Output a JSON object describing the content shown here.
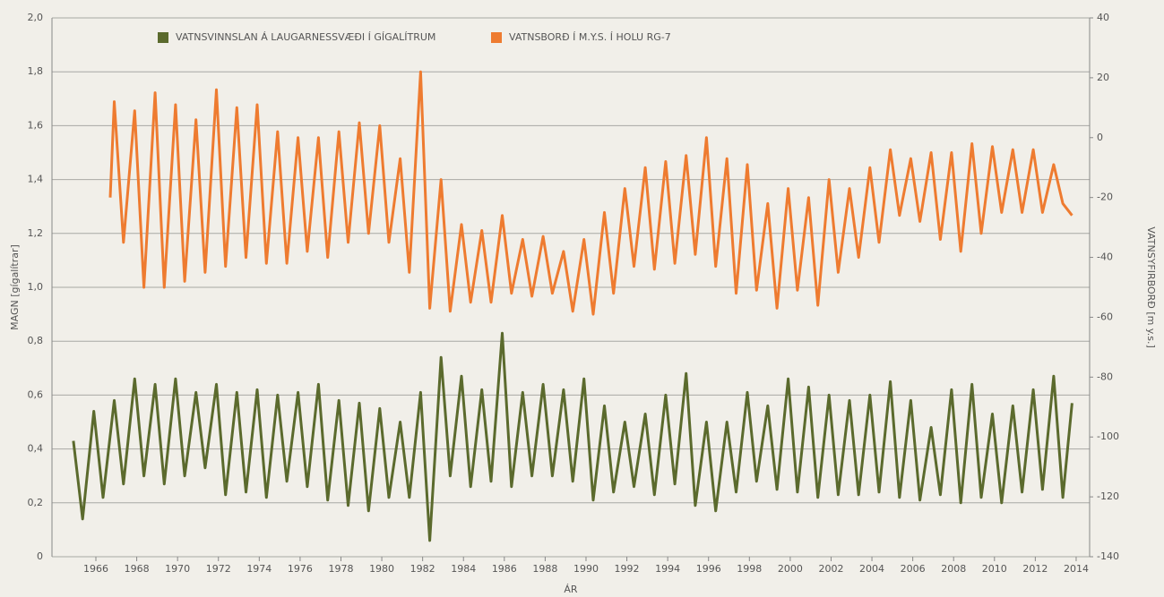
{
  "chart_data": {
    "type": "line",
    "xlabel": "ÁR",
    "ylabel": "MAGN [gígalítrar]",
    "y2label": "VATNSYFIRBORÐ [m y.s.]",
    "xlim": [
      1963.85,
      2014.66
    ],
    "xticks": [
      1966,
      1968,
      1970,
      1972,
      1974,
      1976,
      1978,
      1980,
      1982,
      1984,
      1986,
      1988,
      1990,
      1992,
      1994,
      1996,
      1998,
      2000,
      2002,
      2004,
      2006,
      2008,
      2010,
      2012,
      2014
    ],
    "ylim": [
      0,
      2
    ],
    "yticks": [
      0,
      {
        "value": 0.2,
        "label": "0,2"
      },
      {
        "value": 0.4,
        "label": "0,4"
      },
      {
        "value": 0.6,
        "label": "0,6"
      },
      {
        "value": 0.8,
        "label": "0,8"
      },
      {
        "value": 1,
        "label": "1,0"
      },
      {
        "value": 1.2,
        "label": "1,2"
      },
      {
        "value": 1.4,
        "label": "1,4"
      },
      {
        "value": 1.6,
        "label": "1,6"
      },
      {
        "value": 1.8,
        "label": "1,8"
      },
      {
        "value": 2,
        "label": "2,0"
      }
    ],
    "y2lim": [
      -140,
      40
    ],
    "y2ticks": [
      -140,
      -120,
      -100,
      -80,
      -60,
      -40,
      -20,
      0,
      20,
      40
    ],
    "grid": true,
    "series": [
      {
        "name": "VATNSVINNSLAN Á LAUGARNESSVÆÐI Í GÍGALÍTRUM",
        "color": "#5b6a2d",
        "x": [
          1964.9,
          1965.35,
          1965.9,
          1966.35,
          1966.9,
          1967.35,
          1967.9,
          1968.35,
          1968.9,
          1969.35,
          1969.9,
          1970.35,
          1970.9,
          1971.35,
          1971.9,
          1972.35,
          1972.9,
          1973.35,
          1973.9,
          1974.35,
          1974.9,
          1975.35,
          1975.9,
          1976.35,
          1976.9,
          1977.35,
          1977.9,
          1978.35,
          1978.9,
          1979.35,
          1979.9,
          1980.35,
          1980.9,
          1981.35,
          1981.9,
          1982.35,
          1982.9,
          1983.35,
          1983.9,
          1984.35,
          1984.9,
          1985.35,
          1985.9,
          1986.35,
          1986.9,
          1987.35,
          1987.9,
          1988.35,
          1988.9,
          1989.35,
          1989.9,
          1990.35,
          1990.9,
          1991.35,
          1991.9,
          1992.35,
          1992.9,
          1993.35,
          1993.9,
          1994.35,
          1994.9,
          1995.35,
          1995.9,
          1996.35,
          1996.9,
          1997.35,
          1997.9,
          1998.35,
          1998.9,
          1999.35,
          1999.9,
          2000.35,
          2000.9,
          2001.35,
          2001.9,
          2002.35,
          2002.9,
          2003.35,
          2003.9,
          2004.35,
          2004.9,
          2005.35,
          2005.9,
          2006.35,
          2006.9,
          2007.35,
          2007.9,
          2008.35,
          2008.9,
          2009.35,
          2009.9,
          2010.35,
          2010.9,
          2011.35,
          2011.9,
          2012.35,
          2012.9,
          2013.35,
          2013.8
        ],
        "values": [
          0.43,
          0.14,
          0.54,
          0.22,
          0.58,
          0.27,
          0.66,
          0.3,
          0.64,
          0.27,
          0.66,
          0.3,
          0.61,
          0.33,
          0.64,
          0.23,
          0.61,
          0.24,
          0.62,
          0.22,
          0.6,
          0.28,
          0.61,
          0.26,
          0.64,
          0.21,
          0.58,
          0.19,
          0.57,
          0.17,
          0.55,
          0.22,
          0.5,
          0.22,
          0.61,
          0.06,
          0.74,
          0.3,
          0.67,
          0.26,
          0.62,
          0.28,
          0.83,
          0.26,
          0.61,
          0.3,
          0.64,
          0.3,
          0.62,
          0.28,
          0.66,
          0.21,
          0.56,
          0.24,
          0.5,
          0.26,
          0.53,
          0.23,
          0.6,
          0.27,
          0.68,
          0.19,
          0.5,
          0.17,
          0.5,
          0.24,
          0.61,
          0.28,
          0.56,
          0.25,
          0.66,
          0.24,
          0.63,
          0.22,
          0.6,
          0.23,
          0.58,
          0.23,
          0.6,
          0.24,
          0.65,
          0.22,
          0.58,
          0.21,
          0.48,
          0.23,
          0.62,
          0.2,
          0.64,
          0.22,
          0.53,
          0.2,
          0.56,
          0.24,
          0.62,
          0.25,
          0.67,
          0.22,
          0.57
        ]
      },
      {
        "name": "VATNSBORÐ Í M.Y.S. Í HOLU RG-7",
        "color": "#ee7b30",
        "axis": "y2",
        "x": [
          1966.7,
          1966.9,
          1967.35,
          1967.9,
          1968.35,
          1968.9,
          1969.35,
          1969.9,
          1970.35,
          1970.9,
          1971.35,
          1971.9,
          1972.35,
          1972.9,
          1973.35,
          1973.9,
          1974.35,
          1974.9,
          1975.35,
          1975.9,
          1976.35,
          1976.9,
          1977.35,
          1977.9,
          1978.35,
          1978.9,
          1979.35,
          1979.9,
          1980.35,
          1980.9,
          1981.35,
          1981.9,
          1982.35,
          1982.9,
          1983.35,
          1983.9,
          1984.35,
          1984.9,
          1985.35,
          1985.9,
          1986.35,
          1986.9,
          1987.35,
          1987.9,
          1988.35,
          1988.9,
          1989.35,
          1989.9,
          1990.35,
          1990.9,
          1991.35,
          1991.9,
          1992.35,
          1992.9,
          1993.35,
          1993.9,
          1994.35,
          1994.9,
          1995.35,
          1995.9,
          1996.35,
          1996.9,
          1997.35,
          1997.9,
          1998.35,
          1998.9,
          1999.35,
          1999.9,
          2000.35,
          2000.9,
          2001.35,
          2001.9,
          2002.35,
          2002.9,
          2003.35,
          2003.9,
          2004.35,
          2004.9,
          2005.35,
          2005.9,
          2006.35,
          2006.9,
          2007.35,
          2007.9,
          2008.35,
          2008.9,
          2009.35,
          2009.9,
          2010.35,
          2010.9,
          2011.35,
          2011.9,
          2012.35,
          2012.9,
          2013.35,
          2013.8
        ],
        "values": [
          -20,
          12,
          -35,
          9,
          -50,
          15,
          -50,
          11,
          -48,
          6,
          -45,
          16,
          -43,
          10,
          -40,
          11,
          -42,
          2,
          -42,
          0,
          -38,
          0,
          -40,
          2,
          -35,
          5,
          -32,
          4,
          -35,
          -7,
          -45,
          22,
          -57,
          -14,
          -58,
          -29,
          -55,
          -31,
          -55,
          -26,
          -52,
          -34,
          -53,
          -33,
          -52,
          -38,
          -58,
          -34,
          -59,
          -25,
          -52,
          -17,
          -43,
          -10,
          -44,
          -8,
          -42,
          -6,
          -39,
          0,
          -43,
          -7,
          -52,
          -9,
          -51,
          -22,
          -57,
          -17,
          -51,
          -20,
          -56,
          -14,
          -45,
          -17,
          -40,
          -10,
          -35,
          -4,
          -26,
          -7,
          -28,
          -5,
          -34,
          -5,
          -38,
          -2,
          -32,
          -3,
          -25,
          -4,
          -25,
          -4,
          -25,
          -9,
          -22,
          -26
        ]
      }
    ]
  }
}
